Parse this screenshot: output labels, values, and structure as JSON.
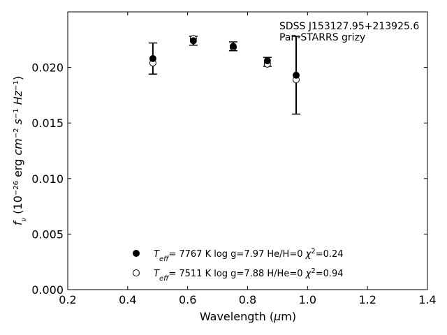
{
  "chart_data": {
    "type": "scatter",
    "annotations": [
      "SDSS J153127.95+213925.6",
      "Pan-STARRS grizy"
    ],
    "xlim": [
      0.2,
      1.4
    ],
    "ylim": [
      0.0,
      0.025
    ],
    "xticks": [
      0.2,
      0.4,
      0.6,
      0.8,
      1.0,
      1.2,
      1.4
    ],
    "xtick_labels": [
      "0.2",
      "0.4",
      "0.6",
      "0.8",
      "1.0",
      "1.2",
      "1.4"
    ],
    "yticks": [
      0.0,
      0.005,
      0.01,
      0.015,
      0.02
    ],
    "ytick_labels": [
      "0.000",
      "0.005",
      "0.010",
      "0.015",
      "0.020"
    ],
    "grid": false,
    "legend_placement": "lower-center",
    "observed": {
      "x": [
        0.484,
        0.619,
        0.752,
        0.866,
        0.962
      ],
      "y": [
        0.0208,
        0.0224,
        0.0219,
        0.0205,
        0.0193
      ],
      "yerr": [
        0.0014,
        0.0004,
        0.0004,
        0.0004,
        0.0035
      ]
    },
    "series": [
      {
        "name_parts": [
          "T",
          "eff",
          "=  7767 K  log g=7.97  He/H=0  ",
          "χ",
          "2",
          "=0.24"
        ],
        "marker": "filled-circle",
        "color": "#000000",
        "x": [
          0.484,
          0.619,
          0.752,
          0.866,
          0.962
        ],
        "y": [
          0.0208,
          0.0224,
          0.0219,
          0.0206,
          0.0193
        ]
      },
      {
        "name_parts": [
          "T",
          "eff",
          "=  7511 K  log g=7.88  H/He=0  ",
          "χ",
          "2",
          "=0.94"
        ],
        "marker": "open-circle",
        "color": "#000000",
        "x": [
          0.484,
          0.619,
          0.752,
          0.866,
          0.962
        ],
        "y": [
          0.0204,
          0.0226,
          0.0218,
          0.0203,
          0.0189
        ]
      }
    ],
    "xlabel_parts": [
      "Wavelength (",
      "μ",
      "m)"
    ],
    "ylabel_parts": [
      "f",
      "ν",
      " (10",
      "−26",
      " erg ",
      "cm",
      "−2",
      " ",
      "s",
      "−1",
      " ",
      "Hz",
      "−1",
      ")"
    ]
  }
}
